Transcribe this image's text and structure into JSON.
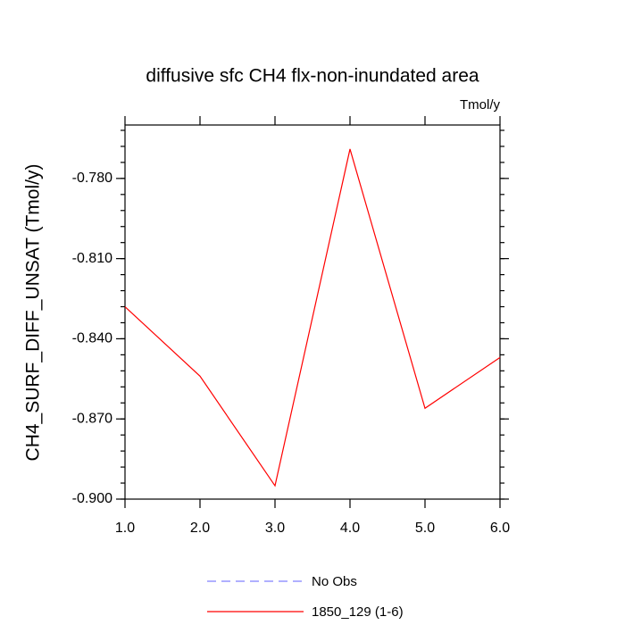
{
  "chart_data": {
    "type": "line",
    "title": "diffusive sfc CH4 flx-non-inundated area",
    "units": "Tmol/y",
    "y_label": "CH4_SURF_DIFF_UNSAT  (Tmol/y)",
    "x": [
      1,
      2,
      3,
      4,
      5,
      6
    ],
    "series": [
      {
        "name": "No Obs",
        "color": "#8080ff",
        "dashed": true,
        "values": [
          null,
          null,
          null,
          null,
          null,
          null
        ]
      },
      {
        "name": "1850_129 (1-6)",
        "color": "#ff0000",
        "dashed": false,
        "values": [
          -0.828,
          -0.854,
          -0.895,
          -0.769,
          -0.866,
          -0.847
        ]
      }
    ],
    "xlim": [
      1,
      6
    ],
    "xticks": [
      {
        "value": 1,
        "label": "1.0"
      },
      {
        "value": 2,
        "label": "2.0"
      },
      {
        "value": 3,
        "label": "3.0"
      },
      {
        "value": 4,
        "label": "4.0"
      },
      {
        "value": 5,
        "label": "5.0"
      },
      {
        "value": 6,
        "label": "6.0"
      }
    ],
    "ylim": [
      -0.9,
      -0.76
    ],
    "yticks": [
      {
        "value": -0.9,
        "label": "-0.900"
      },
      {
        "value": -0.87,
        "label": "-0.870"
      },
      {
        "value": -0.84,
        "label": "-0.840"
      },
      {
        "value": -0.81,
        "label": "-0.810"
      },
      {
        "value": -0.78,
        "label": "-0.780"
      }
    ],
    "grid": false
  }
}
